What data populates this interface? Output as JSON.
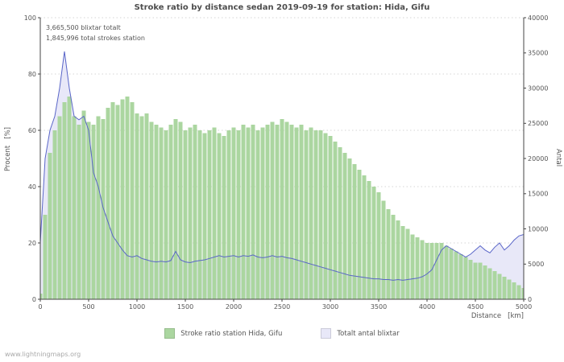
{
  "page": {
    "watermark": "www.lightningmaps.org"
  },
  "chart_data": {
    "type": "bar",
    "title": "Stroke ratio by distance sedan 2019-09-19 for station: Hida, Gifu",
    "annotations": [
      "3,665,500 blixtar totalt",
      "1,845,996 total strokes station"
    ],
    "xlabel": "Distance   [km]",
    "ylabel_left": "Procent   [%]",
    "ylabel_right": "Antal",
    "xlim": [
      0,
      5000
    ],
    "ylim_left": [
      0,
      100
    ],
    "ylim_right": [
      0,
      40000
    ],
    "x_ticks": [
      0,
      500,
      1000,
      1500,
      2000,
      2500,
      3000,
      3500,
      4000,
      4500,
      5000
    ],
    "y_left_ticks": [
      0,
      20,
      40,
      60,
      80,
      100
    ],
    "y_right_ticks": [
      0,
      5000,
      10000,
      15000,
      20000,
      25000,
      30000,
      35000,
      40000
    ],
    "grid": "horizontal-dotted",
    "legend_position": "bottom",
    "x": [
      0,
      50,
      100,
      150,
      200,
      250,
      300,
      350,
      400,
      450,
      500,
      550,
      600,
      650,
      700,
      750,
      800,
      850,
      900,
      950,
      1000,
      1050,
      1100,
      1150,
      1200,
      1250,
      1300,
      1350,
      1400,
      1450,
      1500,
      1550,
      1600,
      1650,
      1700,
      1750,
      1800,
      1850,
      1900,
      1950,
      2000,
      2050,
      2100,
      2150,
      2200,
      2250,
      2300,
      2350,
      2400,
      2450,
      2500,
      2550,
      2600,
      2650,
      2700,
      2750,
      2800,
      2850,
      2900,
      2950,
      3000,
      3050,
      3100,
      3150,
      3200,
      3250,
      3300,
      3350,
      3400,
      3450,
      3500,
      3550,
      3600,
      3650,
      3700,
      3750,
      3800,
      3850,
      3900,
      3950,
      4000,
      4050,
      4100,
      4150,
      4200,
      4250,
      4300,
      4350,
      4400,
      4450,
      4500,
      4550,
      4600,
      4650,
      4700,
      4750,
      4800,
      4850,
      4900,
      4950,
      5000
    ],
    "series": [
      {
        "name": "Stroke ratio station Hida, Gifu",
        "style": "bar",
        "axis": "left",
        "unit": "%",
        "color": "#abd6a0",
        "values": [
          2,
          30,
          52,
          60,
          65,
          70,
          72,
          65,
          62,
          67,
          63,
          62,
          65,
          64,
          68,
          70,
          69,
          71,
          72,
          70,
          66,
          65,
          66,
          63,
          62,
          61,
          60,
          62,
          64,
          63,
          60,
          61,
          62,
          60,
          59,
          60,
          61,
          59,
          58,
          60,
          61,
          60,
          62,
          61,
          62,
          60,
          61,
          62,
          63,
          62,
          64,
          63,
          62,
          61,
          62,
          60,
          61,
          60,
          60,
          59,
          58,
          56,
          54,
          52,
          50,
          48,
          46,
          44,
          42,
          40,
          38,
          35,
          32,
          30,
          28,
          26,
          25,
          23,
          22,
          21,
          20,
          20,
          20,
          20,
          19,
          18,
          17,
          16,
          15,
          14,
          13,
          13,
          12,
          11,
          10,
          9,
          8,
          7,
          6,
          5,
          4
        ]
      },
      {
        "name": "Totalt antal blixtar",
        "style": "area-line",
        "axis": "right",
        "unit": "strokes",
        "color": "#e8e8f8",
        "line_color": "#5a66c8",
        "values": [
          8000,
          20000,
          24000,
          26000,
          30000,
          35200,
          30000,
          26000,
          25500,
          26000,
          24000,
          18000,
          16000,
          13000,
          11000,
          9000,
          8000,
          7000,
          6200,
          6000,
          6200,
          5800,
          5600,
          5400,
          5300,
          5400,
          5300,
          5500,
          6800,
          5600,
          5300,
          5200,
          5400,
          5500,
          5600,
          5800,
          6000,
          6200,
          6000,
          6100,
          6200,
          6000,
          6200,
          6100,
          6300,
          6000,
          5900,
          6000,
          6200,
          6000,
          6100,
          5900,
          5800,
          5600,
          5400,
          5200,
          5000,
          4800,
          4600,
          4400,
          4200,
          4000,
          3800,
          3600,
          3400,
          3300,
          3200,
          3100,
          3000,
          2900,
          2900,
          2800,
          2800,
          2700,
          2800,
          2700,
          2800,
          2900,
          3000,
          3200,
          3600,
          4200,
          5600,
          7000,
          7600,
          7200,
          6800,
          6400,
          6000,
          6400,
          7000,
          7600,
          7000,
          6600,
          7400,
          8000,
          7000,
          7600,
          8400,
          9000,
          9200
        ]
      }
    ]
  }
}
